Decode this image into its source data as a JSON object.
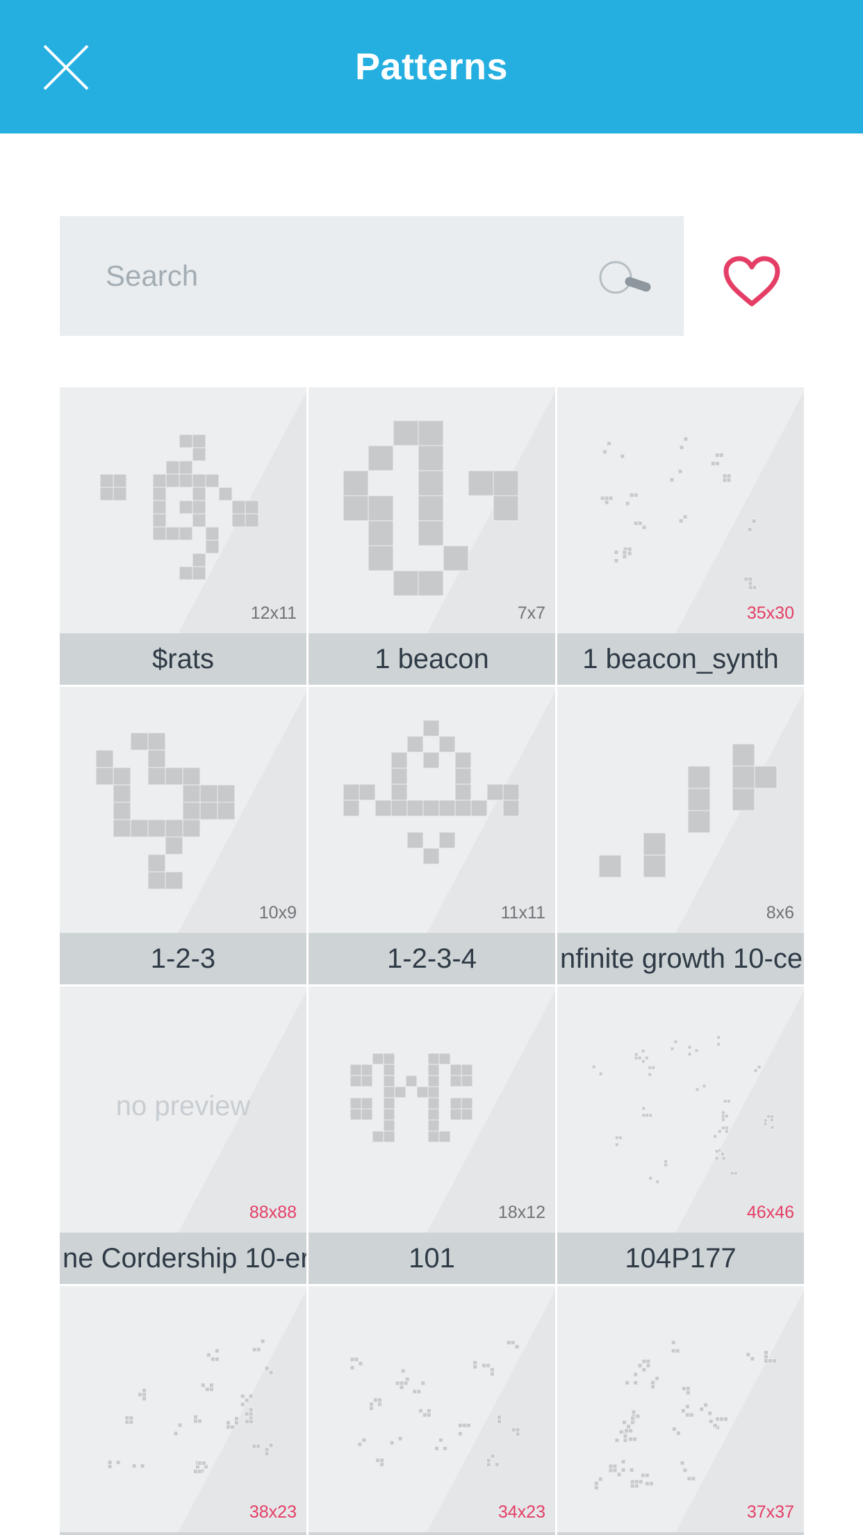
{
  "header": {
    "title": "Patterns",
    "close_icon": "close-icon",
    "background": "#25afe1"
  },
  "search": {
    "placeholder": "Search",
    "value": "",
    "icon": "search-icon"
  },
  "favorites": {
    "icon": "heart-icon",
    "color": "#e43e66"
  },
  "patterns": [
    {
      "name": "$rats",
      "size": "12x11",
      "size_highlight": false
    },
    {
      "name": "1 beacon",
      "size": "7x7",
      "size_highlight": false
    },
    {
      "name": "1 beacon_synth",
      "size": "35x30",
      "size_highlight": true
    },
    {
      "name": "1-2-3",
      "size": "10x9",
      "size_highlight": false
    },
    {
      "name": "1-2-3-4",
      "size": "11x11",
      "size_highlight": false
    },
    {
      "name": "nfinite growth   10-ce",
      "size": "8x6",
      "size_highlight": false
    },
    {
      "name": "ne Cordership   10-er",
      "size": "88x88",
      "size_highlight": true,
      "preview_text": "no preview"
    },
    {
      "name": "101",
      "size": "18x12",
      "size_highlight": false
    },
    {
      "name": "104P177",
      "size": "46x46",
      "size_highlight": true
    },
    {
      "name": "",
      "size": "38x23",
      "size_highlight": true
    },
    {
      "name": "",
      "size": "34x23",
      "size_highlight": true
    },
    {
      "name": "",
      "size": "37x37",
      "size_highlight": true
    }
  ]
}
